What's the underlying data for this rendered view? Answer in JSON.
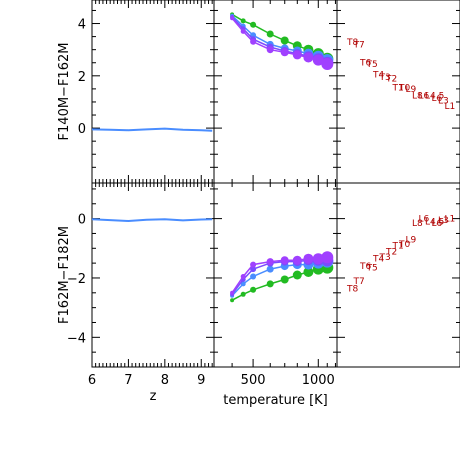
{
  "chart_data": {
    "type": "line",
    "layout": "2x3 panel grid",
    "rows": [
      {
        "ylabel": "F140M−F162M",
        "yticks": [
          "0",
          "2",
          "4"
        ],
        "ylim": [
          -2.1,
          4.9
        ],
        "redshift_panel": {
          "x": [
            6,
            6.5,
            7,
            7.5,
            8,
            8.5,
            9,
            9.3
          ],
          "y": [
            -0.05,
            -0.06,
            -0.08,
            -0.05,
            -0.02,
            -0.06,
            -0.08,
            -0.1
          ]
        },
        "temperature_panel": {
          "series": [
            {
              "color": "#22bb22",
              "x": [
                400,
                450,
                500,
                600,
                700,
                800,
                900,
                1000,
                1100
              ],
              "y": [
                4.35,
                4.1,
                3.95,
                3.6,
                3.35,
                3.15,
                3.0,
                2.85,
                2.65
              ]
            },
            {
              "color": "#4a8dff",
              "x": [
                400,
                450,
                500,
                600,
                700,
                800,
                900,
                1000,
                1100
              ],
              "y": [
                4.3,
                3.9,
                3.55,
                3.2,
                3.05,
                2.95,
                2.85,
                2.75,
                2.6
              ]
            },
            {
              "color": "#7a4cff",
              "x": [
                400,
                450,
                500,
                600,
                700,
                800,
                900,
                1000,
                1100
              ],
              "y": [
                4.25,
                3.8,
                3.4,
                3.1,
                2.95,
                2.85,
                2.75,
                2.65,
                2.5
              ]
            },
            {
              "color": "#a040ff",
              "x": [
                400,
                450,
                500,
                600,
                700,
                800,
                900,
                1000,
                1100
              ],
              "y": [
                4.2,
                3.7,
                3.3,
                3.0,
                2.9,
                2.8,
                2.7,
                2.6,
                2.45
              ]
            }
          ]
        },
        "spectral_types": [
          {
            "label": "T8",
            "y": 3.3
          },
          {
            "label": "T7",
            "y": 3.2
          },
          {
            "label": "T6",
            "y": 2.5
          },
          {
            "label": "T5",
            "y": 2.45
          },
          {
            "label": "T4",
            "y": 2.05
          },
          {
            "label": "T3",
            "y": 1.95
          },
          {
            "label": "T2",
            "y": 1.9
          },
          {
            "label": "T1",
            "y": 1.55
          },
          {
            "label": "T0",
            "y": 1.55
          },
          {
            "label": "L9",
            "y": 1.5
          },
          {
            "label": "L8",
            "y": 1.25
          },
          {
            "label": "L6",
            "y": 1.25
          },
          {
            "label": "L4.5",
            "y": 1.25
          },
          {
            "label": "L6",
            "y": 1.15
          },
          {
            "label": "L3",
            "y": 1.05
          },
          {
            "label": "L1",
            "y": 0.85
          }
        ]
      },
      {
        "ylabel": "F162M−F182M",
        "yticks": [
          "−4",
          "−2",
          "0"
        ],
        "ylim": [
          -5.0,
          1.2
        ],
        "redshift_panel": {
          "x": [
            6,
            6.5,
            7,
            7.5,
            8,
            8.5,
            9,
            9.3
          ],
          "y": [
            -0.02,
            -0.05,
            -0.08,
            -0.04,
            -0.02,
            -0.06,
            -0.03,
            -0.02
          ]
        },
        "temperature_panel": {
          "series": [
            {
              "color": "#22bb22",
              "x": [
                400,
                450,
                500,
                600,
                700,
                800,
                900,
                1000,
                1100
              ],
              "y": [
                -2.75,
                -2.55,
                -2.4,
                -2.2,
                -2.05,
                -1.9,
                -1.8,
                -1.7,
                -1.65
              ]
            },
            {
              "color": "#4a8dff",
              "x": [
                400,
                450,
                500,
                600,
                700,
                800,
                900,
                1000,
                1100
              ],
              "y": [
                -2.6,
                -2.2,
                -1.95,
                -1.7,
                -1.6,
                -1.55,
                -1.55,
                -1.5,
                -1.45
              ]
            },
            {
              "color": "#7a4cff",
              "x": [
                400,
                450,
                500,
                600,
                700,
                800,
                900,
                1000,
                1100
              ],
              "y": [
                -2.55,
                -2.05,
                -1.7,
                -1.5,
                -1.45,
                -1.45,
                -1.4,
                -1.4,
                -1.4
              ]
            },
            {
              "color": "#a040ff",
              "x": [
                400,
                450,
                500,
                600,
                700,
                800,
                900,
                1000,
                1100
              ],
              "y": [
                -2.5,
                -1.95,
                -1.55,
                -1.45,
                -1.4,
                -1.4,
                -1.35,
                -1.35,
                -1.3
              ]
            }
          ]
        },
        "spectral_types": [
          {
            "label": "T8",
            "y": -2.35
          },
          {
            "label": "T7",
            "y": -2.1
          },
          {
            "label": "T6",
            "y": -1.6
          },
          {
            "label": "T5",
            "y": -1.65
          },
          {
            "label": "T4",
            "y": -1.35
          },
          {
            "label": "T3",
            "y": -1.3
          },
          {
            "label": "T2",
            "y": -1.1
          },
          {
            "label": "T1",
            "y": -0.9
          },
          {
            "label": "T0",
            "y": -0.85
          },
          {
            "label": "L9",
            "y": -0.7
          },
          {
            "label": "L8",
            "y": -0.15
          },
          {
            "label": "L6",
            "y": 0.0
          },
          {
            "label": "L4.5",
            "y": -0.1
          },
          {
            "label": "L6",
            "y": -0.15
          },
          {
            "label": "L3",
            "y": -0.05
          },
          {
            "label": "L1",
            "y": 0.0
          }
        ]
      }
    ],
    "columns": [
      {
        "xlabel": "z",
        "xticks": [
          "6",
          "7",
          "8",
          "9"
        ],
        "xlim": [
          6.0,
          9.35
        ]
      },
      {
        "xlabel": "temperature [K]",
        "xticks": [
          "500",
          "1000"
        ],
        "xlim": [
          330,
          1220
        ],
        "scale": "log"
      },
      {
        "xlabel": "",
        "xticks": [],
        "xlim": [
          0,
          1
        ]
      }
    ]
  }
}
